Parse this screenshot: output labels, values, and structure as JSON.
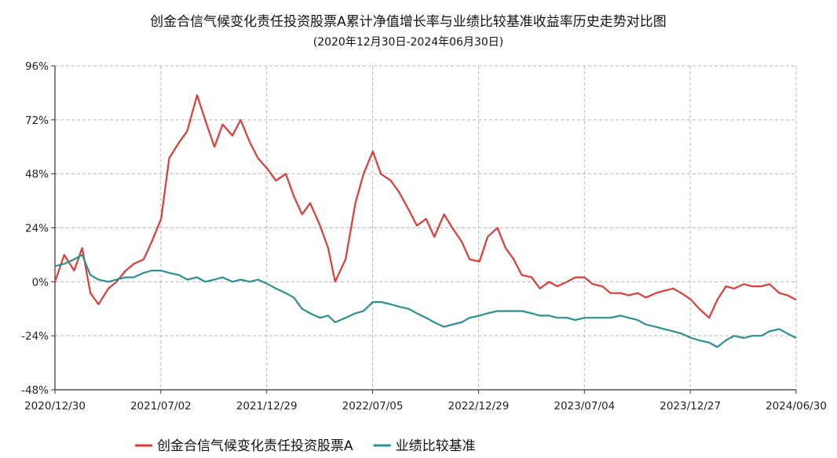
{
  "chart_data": {
    "type": "line",
    "title": "创金合信气候变化责任投资股票A累计净值增长率与业绩比较基准收益率历史走势对比图",
    "subtitle": "(2020年12月30日-2024年06月30日)",
    "y_unit": "%",
    "ylim": [
      -48,
      96
    ],
    "y_ticks": [
      96,
      72,
      48,
      24,
      0,
      -24,
      -48
    ],
    "y_tick_labels": [
      "96%",
      "72%",
      "48%",
      "24%",
      "0%",
      "-24%",
      "-48%"
    ],
    "xlim": [
      "2020-12-30",
      "2024-06-30"
    ],
    "x_tick_labels": [
      "2020/12/30",
      "2021/07/02",
      "2021/12/29",
      "2022/07/05",
      "2022/12/29",
      "2023/07/04",
      "2023/12/27",
      "2024/06/30"
    ],
    "grid": true,
    "legend_position": "bottom",
    "series": [
      {
        "name": "创金合信气候变化责任投资股票A",
        "color": "#e03a35",
        "x": [
          "2020-12-30",
          "2021-01-15",
          "2021-02-01",
          "2021-02-15",
          "2021-03-01",
          "2021-03-15",
          "2021-04-01",
          "2021-04-15",
          "2021-05-01",
          "2021-05-15",
          "2021-06-01",
          "2021-06-15",
          "2021-07-01",
          "2021-07-15",
          "2021-08-01",
          "2021-08-15",
          "2021-09-01",
          "2021-09-15",
          "2021-10-01",
          "2021-10-15",
          "2021-11-01",
          "2021-11-15",
          "2021-12-01",
          "2021-12-15",
          "2022-01-01",
          "2022-01-15",
          "2022-02-01",
          "2022-02-15",
          "2022-03-01",
          "2022-03-15",
          "2022-04-01",
          "2022-04-15",
          "2022-04-27",
          "2022-05-15",
          "2022-06-01",
          "2022-06-15",
          "2022-07-01",
          "2022-07-15",
          "2022-08-01",
          "2022-08-15",
          "2022-09-01",
          "2022-09-15",
          "2022-10-01",
          "2022-10-15",
          "2022-11-01",
          "2022-11-15",
          "2022-12-01",
          "2022-12-15",
          "2023-01-01",
          "2023-01-15",
          "2023-02-01",
          "2023-02-15",
          "2023-03-01",
          "2023-03-15",
          "2023-04-01",
          "2023-04-15",
          "2023-05-01",
          "2023-05-15",
          "2023-06-01",
          "2023-06-15",
          "2023-07-01",
          "2023-07-15",
          "2023-08-01",
          "2023-08-15",
          "2023-09-01",
          "2023-09-15",
          "2023-10-01",
          "2023-10-15",
          "2023-11-01",
          "2023-11-15",
          "2023-12-01",
          "2023-12-15",
          "2024-01-01",
          "2024-01-15",
          "2024-02-01",
          "2024-02-15",
          "2024-03-01",
          "2024-03-15",
          "2024-04-01",
          "2024-04-15",
          "2024-05-01",
          "2024-05-15",
          "2024-06-01",
          "2024-06-15",
          "2024-06-30"
        ],
        "values": [
          0,
          12,
          5,
          15,
          -5,
          -10,
          -3,
          0,
          5,
          8,
          10,
          18,
          28,
          55,
          62,
          67,
          83,
          72,
          60,
          70,
          65,
          72,
          62,
          55,
          50,
          45,
          48,
          38,
          30,
          35,
          25,
          15,
          0,
          10,
          35,
          48,
          58,
          48,
          45,
          40,
          32,
          25,
          28,
          20,
          30,
          24,
          18,
          10,
          9,
          20,
          24,
          15,
          10,
          3,
          2,
          -3,
          0,
          -2,
          0,
          2,
          2,
          -1,
          -2,
          -5,
          -5,
          -6,
          -5,
          -7,
          -5,
          -4,
          -3,
          -5,
          -8,
          -12,
          -16,
          -8,
          -2,
          -3,
          -1,
          -2,
          -2,
          -1,
          -5,
          -6,
          -8
        ]
      },
      {
        "name": "业绩比较基准",
        "color": "#2a9090",
        "x": [
          "2020-12-30",
          "2021-01-15",
          "2021-02-01",
          "2021-02-15",
          "2021-03-01",
          "2021-03-15",
          "2021-04-01",
          "2021-04-15",
          "2021-05-01",
          "2021-05-15",
          "2021-06-01",
          "2021-06-15",
          "2021-07-01",
          "2021-07-15",
          "2021-08-01",
          "2021-08-15",
          "2021-09-01",
          "2021-09-15",
          "2021-10-01",
          "2021-10-15",
          "2021-11-01",
          "2021-11-15",
          "2021-12-01",
          "2021-12-15",
          "2022-01-01",
          "2022-01-15",
          "2022-02-01",
          "2022-02-15",
          "2022-03-01",
          "2022-03-15",
          "2022-04-01",
          "2022-04-15",
          "2022-04-27",
          "2022-05-15",
          "2022-06-01",
          "2022-06-15",
          "2022-07-01",
          "2022-07-15",
          "2022-08-01",
          "2022-08-15",
          "2022-09-01",
          "2022-09-15",
          "2022-10-01",
          "2022-10-15",
          "2022-11-01",
          "2022-11-15",
          "2022-12-01",
          "2022-12-15",
          "2023-01-01",
          "2023-01-15",
          "2023-02-01",
          "2023-02-15",
          "2023-03-01",
          "2023-03-15",
          "2023-04-01",
          "2023-04-15",
          "2023-05-01",
          "2023-05-15",
          "2023-06-01",
          "2023-06-15",
          "2023-07-01",
          "2023-07-15",
          "2023-08-01",
          "2023-08-15",
          "2023-09-01",
          "2023-09-15",
          "2023-10-01",
          "2023-10-15",
          "2023-11-01",
          "2023-11-15",
          "2023-12-01",
          "2023-12-15",
          "2024-01-01",
          "2024-01-15",
          "2024-02-01",
          "2024-02-15",
          "2024-03-01",
          "2024-03-15",
          "2024-04-01",
          "2024-04-15",
          "2024-05-01",
          "2024-05-15",
          "2024-06-01",
          "2024-06-15",
          "2024-06-30"
        ],
        "values": [
          7,
          8,
          10,
          12,
          3,
          1,
          0,
          1,
          2,
          2,
          4,
          5,
          5,
          4,
          3,
          1,
          2,
          0,
          1,
          2,
          0,
          1,
          0,
          1,
          -1,
          -3,
          -5,
          -7,
          -12,
          -14,
          -16,
          -15,
          -18,
          -16,
          -14,
          -13,
          -9,
          -9,
          -10,
          -11,
          -12,
          -14,
          -16,
          -18,
          -20,
          -19,
          -18,
          -16,
          -15,
          -14,
          -13,
          -13,
          -13,
          -13,
          -14,
          -15,
          -15,
          -16,
          -16,
          -17,
          -16,
          -16,
          -16,
          -16,
          -15,
          -16,
          -17,
          -19,
          -20,
          -21,
          -22,
          -23,
          -25,
          -26,
          -27,
          -29,
          -26,
          -24,
          -25,
          -24,
          -24,
          -22,
          -21,
          -23,
          -25
        ]
      }
    ]
  }
}
